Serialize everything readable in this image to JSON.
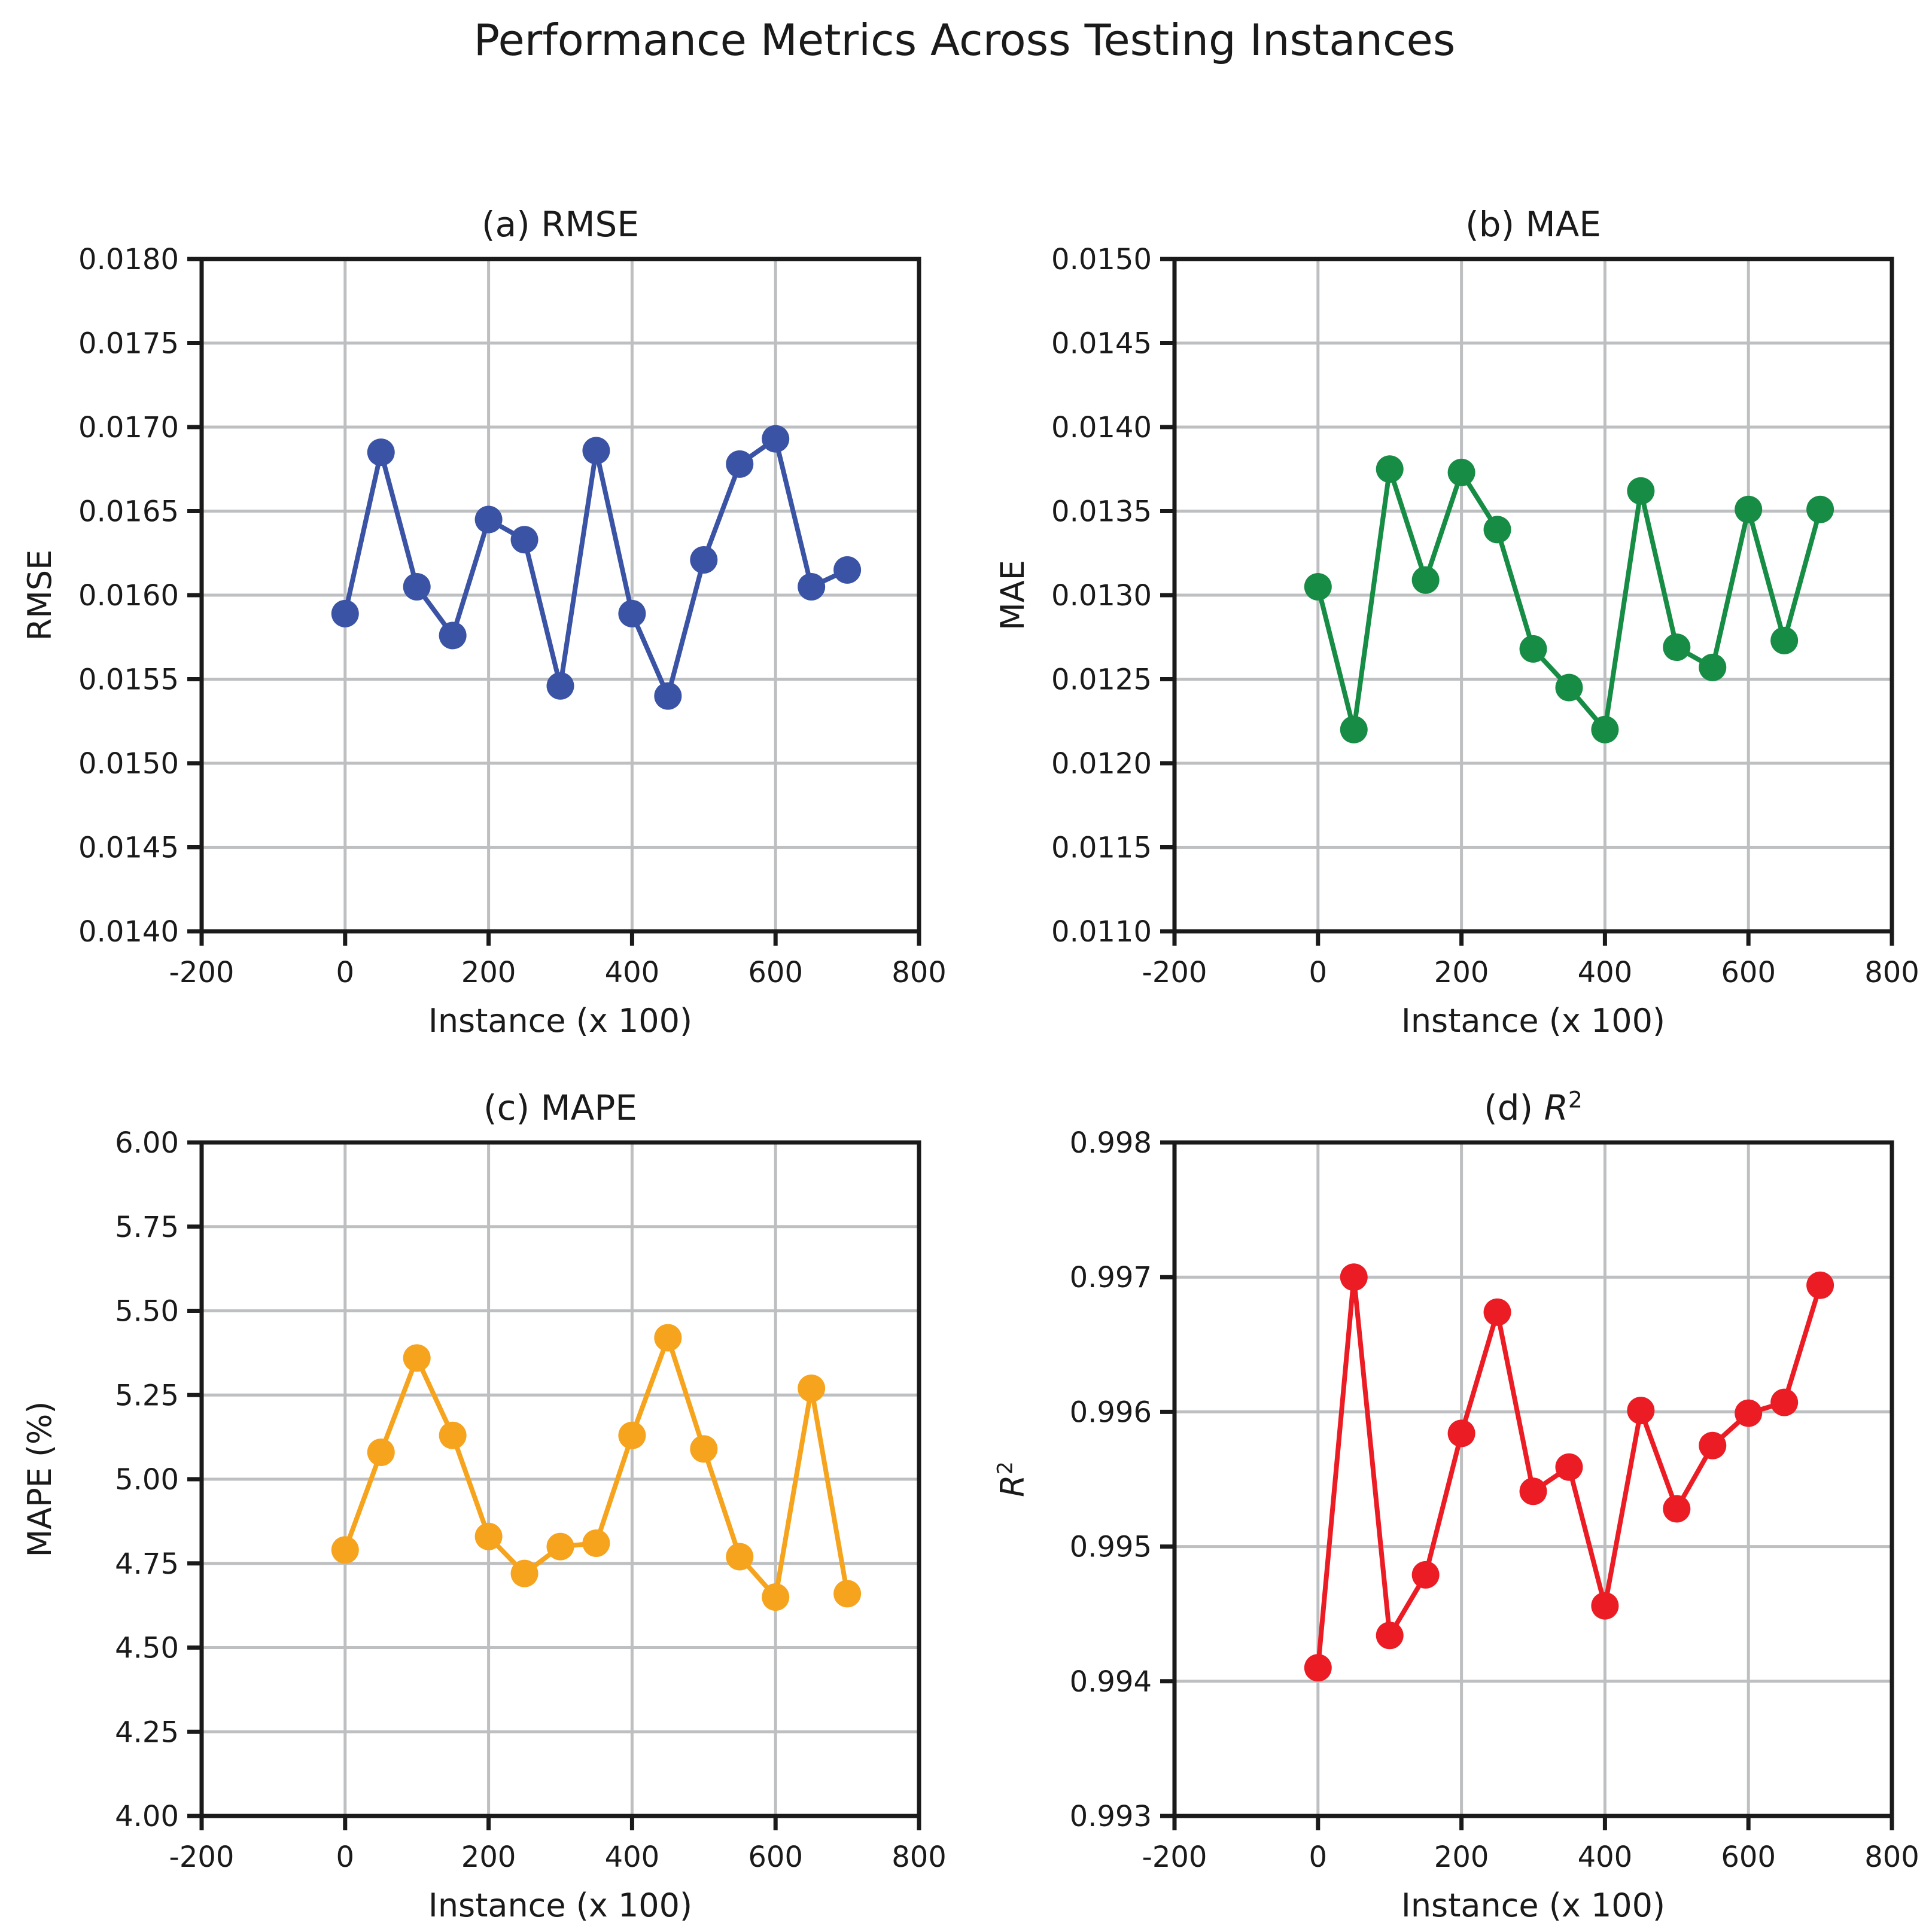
{
  "suptitle": "Performance Metrics Across Testing Instances",
  "shared": {
    "xlabel": "Instance (x 100)",
    "xlim": [
      -200,
      800
    ],
    "xtick_values": [
      -200,
      0,
      200,
      400,
      600,
      800
    ],
    "xtick_labels": [
      "-200",
      "0",
      "200",
      "400",
      "600",
      "800"
    ]
  },
  "palette": {
    "rmse_blue": "#3A53A4",
    "mae_green": "#168C45",
    "mape_orange": "#F6A31D",
    "r2_red": "#EC1C24",
    "grid_gray": "#BDBFC1",
    "axis_black": "#1A1A1A"
  },
  "chart_data": [
    {
      "type": "line",
      "id": "rmse",
      "title": "(a) RMSE",
      "xlabel": "Instance (x 100)",
      "ylabel": "RMSE",
      "color": "#3A53A4",
      "grid": true,
      "marker": "circle",
      "xlim": [
        -200,
        800
      ],
      "ylim": [
        0.014,
        0.018
      ],
      "xtick_values": [
        -200,
        0,
        200,
        400,
        600,
        800
      ],
      "xtick_labels": [
        "-200",
        "0",
        "200",
        "400",
        "600",
        "800"
      ],
      "ytick_values": [
        0.014,
        0.0145,
        0.015,
        0.0155,
        0.016,
        0.0165,
        0.017,
        0.0175,
        0.018
      ],
      "ytick_labels": [
        "0.0140",
        "0.0145",
        "0.0150",
        "0.0155",
        "0.0160",
        "0.0165",
        "0.0170",
        "0.0175",
        "0.0180"
      ],
      "x": [
        0,
        50,
        100,
        150,
        200,
        250,
        300,
        350,
        400,
        450,
        500,
        550,
        600,
        650,
        700
      ],
      "values": [
        0.01589,
        0.01685,
        0.01605,
        0.01576,
        0.01645,
        0.01633,
        0.01546,
        0.01686,
        0.01589,
        0.0154,
        0.01621,
        0.01678,
        0.01693,
        0.01605,
        0.01615
      ]
    },
    {
      "type": "line",
      "id": "mae",
      "title": "(b) MAE",
      "xlabel": "Instance (x 100)",
      "ylabel": "MAE",
      "color": "#168C45",
      "grid": true,
      "marker": "circle",
      "xlim": [
        -200,
        800
      ],
      "ylim": [
        0.011,
        0.015
      ],
      "xtick_values": [
        -200,
        0,
        200,
        400,
        600,
        800
      ],
      "xtick_labels": [
        "-200",
        "0",
        "200",
        "400",
        "600",
        "800"
      ],
      "ytick_values": [
        0.011,
        0.0115,
        0.012,
        0.0125,
        0.013,
        0.0135,
        0.014,
        0.0145,
        0.015
      ],
      "ytick_labels": [
        "0.0110",
        "0.0115",
        "0.0120",
        "0.0125",
        "0.0130",
        "0.0135",
        "0.0140",
        "0.0145",
        "0.0150"
      ],
      "x": [
        0,
        50,
        100,
        150,
        200,
        250,
        300,
        350,
        400,
        450,
        500,
        550,
        600,
        650,
        700
      ],
      "values": [
        0.01305,
        0.0122,
        0.01375,
        0.01309,
        0.01373,
        0.01339,
        0.01268,
        0.01245,
        0.0122,
        0.01362,
        0.01269,
        0.01257,
        0.01351,
        0.01273,
        0.01351
      ]
    },
    {
      "type": "line",
      "id": "mape",
      "title": "(c) MAPE",
      "xlabel": "Instance (x 100)",
      "ylabel": "MAPE (%)",
      "color": "#F6A31D",
      "grid": true,
      "marker": "circle",
      "xlim": [
        -200,
        800
      ],
      "ylim": [
        4.0,
        6.0
      ],
      "xtick_values": [
        -200,
        0,
        200,
        400,
        600,
        800
      ],
      "xtick_labels": [
        "-200",
        "0",
        "200",
        "400",
        "600",
        "800"
      ],
      "ytick_values": [
        4.0,
        4.25,
        4.5,
        4.75,
        5.0,
        5.25,
        5.5,
        5.75,
        6.0
      ],
      "ytick_labels": [
        "4.00",
        "4.25",
        "4.50",
        "4.75",
        "5.00",
        "5.25",
        "5.50",
        "5.75",
        "6.00"
      ],
      "x": [
        0,
        50,
        100,
        150,
        200,
        250,
        300,
        350,
        400,
        450,
        500,
        550,
        600,
        650,
        700
      ],
      "values": [
        4.79,
        5.08,
        5.36,
        5.13,
        4.83,
        4.72,
        4.8,
        4.81,
        5.13,
        5.42,
        5.09,
        4.77,
        4.65,
        5.27,
        4.66
      ]
    },
    {
      "type": "line",
      "id": "r2",
      "title": "(d) R²",
      "xlabel": "Instance (x 100)",
      "ylabel": "R²",
      "color": "#EC1C24",
      "grid": true,
      "marker": "circle",
      "xlim": [
        -200,
        800
      ],
      "ylim": [
        0.993,
        0.998
      ],
      "xtick_values": [
        -200,
        0,
        200,
        400,
        600,
        800
      ],
      "xtick_labels": [
        "-200",
        "0",
        "200",
        "400",
        "600",
        "800"
      ],
      "ytick_values": [
        0.993,
        0.994,
        0.995,
        0.996,
        0.997,
        0.998
      ],
      "ytick_labels": [
        "0.993",
        "0.994",
        "0.995",
        "0.996",
        "0.997",
        "0.998"
      ],
      "x": [
        0,
        50,
        100,
        150,
        200,
        250,
        300,
        350,
        400,
        450,
        500,
        550,
        600,
        650,
        700
      ],
      "values": [
        0.9941,
        0.997,
        0.99434,
        0.99479,
        0.99584,
        0.99674,
        0.99541,
        0.99559,
        0.99456,
        0.99601,
        0.99528,
        0.99575,
        0.99599,
        0.99607,
        0.99694
      ]
    }
  ]
}
